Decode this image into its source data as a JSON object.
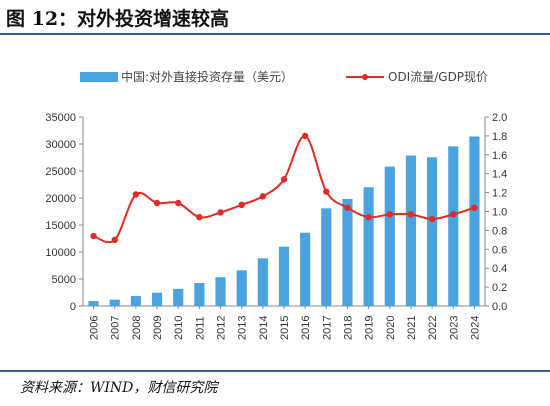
{
  "header": {
    "title": "图 12：对外投资增速较高"
  },
  "footer": {
    "source": "资料来源：WIND，财信研究院"
  },
  "chart_data": {
    "type": "bar",
    "categories": [
      "2006",
      "2007",
      "2008",
      "2009",
      "2010",
      "2011",
      "2012",
      "2013",
      "2014",
      "2015",
      "2016",
      "2017",
      "2018",
      "2019",
      "2020",
      "2021",
      "2022",
      "2023",
      "2024"
    ],
    "series": [
      {
        "name": "中国:对外直接投资存量（美元）",
        "type": "bar",
        "axis": "left",
        "color": "#4aa3df",
        "values": [
          906,
          1179,
          1840,
          2458,
          3172,
          4248,
          5319,
          6605,
          8826,
          10979,
          13574,
          18090,
          19823,
          21989,
          25807,
          27852,
          27548,
          29554,
          31400
        ]
      },
      {
        "name": "ODI流量/GDP现价",
        "type": "line",
        "axis": "right",
        "color": "#e02b27",
        "values": [
          0.74,
          0.7,
          1.18,
          1.09,
          1.09,
          0.94,
          0.99,
          1.07,
          1.16,
          1.34,
          1.8,
          1.21,
          1.04,
          0.94,
          0.97,
          0.97,
          0.92,
          0.97,
          1.04
        ]
      }
    ],
    "y_left": {
      "min": 0,
      "max": 35000,
      "ticks": [
        "0",
        "5000",
        "10000",
        "15000",
        "20000",
        "25000",
        "30000",
        "35000"
      ]
    },
    "y_right": {
      "min": 0,
      "max": 2.0,
      "ticks": [
        "0.0",
        "0.2",
        "0.4",
        "0.6",
        "0.8",
        "1.0",
        "1.2",
        "1.4",
        "1.6",
        "1.8",
        "2.0"
      ]
    },
    "legend_position": "top",
    "grid": false
  }
}
